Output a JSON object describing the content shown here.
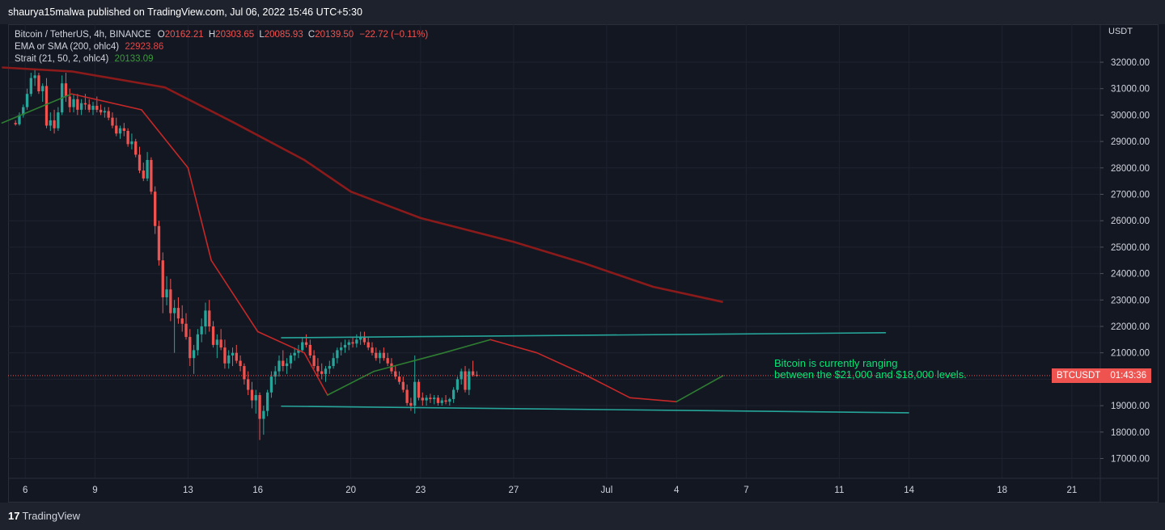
{
  "header": {
    "publisher_line": "shaurya15malwa published on TradingView.com, Jul 06, 2022 15:46 UTC+5:30"
  },
  "legend": {
    "symbol": "Bitcoin / TetherUS, 4h, BINANCE",
    "open_label": "O",
    "open": "20162.21",
    "high_label": "H",
    "high": "20303.65",
    "low_label": "L",
    "low": "20085.93",
    "close_label": "C",
    "close": "20139.50",
    "change": "−22.72 (−0.11%)",
    "ema_label": "EMA or SMA (200, ohlc4)",
    "ema_value": "22923.86",
    "strait_label": "Strait (21, 50, 2, ohlc4)",
    "strait_value": "20133.09"
  },
  "annotation": {
    "line1": "Bitcoin is currently ranging",
    "line2": "between the $21,000 and $18,000 levels."
  },
  "price_flag": {
    "symbol": "BTCUSDT",
    "countdown": "01:43:36"
  },
  "footer": {
    "brand": "TradingView"
  },
  "colors": {
    "up": "#26a69a",
    "down": "#ef5350",
    "ema": "#8b1a1a",
    "strait_up": "#2e7d32",
    "strait_down": "#c62828",
    "trendline": "#26a69a",
    "annotation": "#00e676"
  },
  "chart_data": {
    "type": "candlestick",
    "title": "Bitcoin / TetherUS, 4h, BINANCE",
    "ylabel": "USDT",
    "ylim": [
      16300,
      33000
    ],
    "y_ticks": [
      17000,
      18000,
      19000,
      20000,
      21000,
      22000,
      23000,
      24000,
      25000,
      26000,
      27000,
      28000,
      29000,
      30000,
      31000,
      32000
    ],
    "y_tick_labels": [
      "17000.00",
      "18000.00",
      "19000.00",
      "20000.00",
      "21000.00",
      "22000.00",
      "23000.00",
      "24000.00",
      "25000.00",
      "26000.00",
      "27000.00",
      "28000.00",
      "29000.00",
      "30000.00",
      "31000.00",
      "32000.00"
    ],
    "x_range": [
      "2022-06-05",
      "2022-07-22"
    ],
    "x_ticks": [
      {
        "date": "2022-06-06",
        "label": "6"
      },
      {
        "date": "2022-06-09",
        "label": "9"
      },
      {
        "date": "2022-06-13",
        "label": "13"
      },
      {
        "date": "2022-06-16",
        "label": "16"
      },
      {
        "date": "2022-06-20",
        "label": "20"
      },
      {
        "date": "2022-06-23",
        "label": "23"
      },
      {
        "date": "2022-06-27",
        "label": "27"
      },
      {
        "date": "2022-07-01",
        "label": "Jul"
      },
      {
        "date": "2022-07-04",
        "label": "4"
      },
      {
        "date": "2022-07-07",
        "label": "7"
      },
      {
        "date": "2022-07-11",
        "label": "11"
      },
      {
        "date": "2022-07-14",
        "label": "14"
      },
      {
        "date": "2022-07-18",
        "label": "18"
      },
      {
        "date": "2022-07-21",
        "label": "21"
      }
    ],
    "candle_start": "2022-06-05T14:00",
    "candle_interval_hours": 4,
    "candles": [
      [
        29700,
        29800,
        29600,
        29650
      ],
      [
        29650,
        30100,
        29600,
        30000
      ],
      [
        30000,
        30400,
        29900,
        30300
      ],
      [
        30300,
        31000,
        30200,
        30800
      ],
      [
        30800,
        31600,
        30700,
        31400
      ],
      [
        31400,
        31700,
        31100,
        31500
      ],
      [
        31500,
        31600,
        30800,
        30900
      ],
      [
        30900,
        31200,
        30500,
        31100
      ],
      [
        31100,
        31400,
        29500,
        29600
      ],
      [
        29600,
        30100,
        29400,
        29800
      ],
      [
        29800,
        30200,
        29300,
        29500
      ],
      [
        29500,
        30300,
        29400,
        30100
      ],
      [
        30100,
        31500,
        30000,
        31200
      ],
      [
        31200,
        31600,
        30500,
        30700
      ],
      [
        30700,
        31000,
        30100,
        30300
      ],
      [
        30300,
        30800,
        30100,
        30600
      ],
      [
        30600,
        30800,
        30000,
        30200
      ],
      [
        30200,
        30600,
        30000,
        30450
      ],
      [
        30450,
        30800,
        30200,
        30400
      ],
      [
        30400,
        30600,
        30100,
        30200
      ],
      [
        30200,
        30500,
        30000,
        30350
      ],
      [
        30350,
        30700,
        30100,
        30200
      ],
      [
        30200,
        30400,
        30000,
        30100
      ],
      [
        30100,
        30300,
        29900,
        30150
      ],
      [
        30150,
        30300,
        29800,
        29900
      ],
      [
        29900,
        30100,
        29500,
        29600
      ],
      [
        29600,
        29900,
        29200,
        29300
      ],
      [
        29300,
        29600,
        29100,
        29500
      ],
      [
        29500,
        29700,
        29200,
        29400
      ],
      [
        29400,
        29500,
        28800,
        28900
      ],
      [
        28900,
        29300,
        28700,
        29000
      ],
      [
        29000,
        29100,
        28400,
        28500
      ],
      [
        28500,
        28800,
        27800,
        27900
      ],
      [
        27900,
        28200,
        27500,
        27600
      ],
      [
        27600,
        28600,
        27500,
        28300
      ],
      [
        28300,
        28400,
        27000,
        27100
      ],
      [
        27100,
        27300,
        25500,
        25800
      ],
      [
        25800,
        26000,
        24300,
        24500
      ],
      [
        24500,
        24800,
        22500,
        23100
      ],
      [
        23100,
        23900,
        22800,
        23400
      ],
      [
        23400,
        23800,
        22200,
        22500
      ],
      [
        22500,
        23000,
        21000,
        22700
      ],
      [
        22700,
        23100,
        22100,
        22300
      ],
      [
        22300,
        22800,
        21800,
        22100
      ],
      [
        22100,
        22500,
        21500,
        21600
      ],
      [
        21600,
        21900,
        20500,
        20800
      ],
      [
        20800,
        21300,
        20200,
        21100
      ],
      [
        21100,
        21900,
        20900,
        21700
      ],
      [
        21700,
        22300,
        21400,
        22000
      ],
      [
        22000,
        22900,
        21700,
        22600
      ],
      [
        22600,
        23000,
        21800,
        22000
      ],
      [
        22000,
        22200,
        21200,
        21300
      ],
      [
        21300,
        21700,
        20800,
        21500
      ],
      [
        21500,
        21900,
        21100,
        21200
      ],
      [
        21200,
        21500,
        20400,
        20600
      ],
      [
        20600,
        21100,
        20400,
        20900
      ],
      [
        20900,
        21200,
        20500,
        21000
      ],
      [
        21000,
        21300,
        20600,
        20700
      ],
      [
        20700,
        20900,
        20300,
        20500
      ],
      [
        20500,
        20600,
        19800,
        20000
      ],
      [
        20000,
        20300,
        19400,
        19600
      ],
      [
        19600,
        19900,
        18900,
        19200
      ],
      [
        19200,
        19600,
        18700,
        19400
      ],
      [
        19400,
        19500,
        17700,
        18500
      ],
      [
        18500,
        19000,
        17900,
        18800
      ],
      [
        18800,
        19600,
        18600,
        19500
      ],
      [
        19500,
        20300,
        19300,
        20100
      ],
      [
        20100,
        20500,
        19800,
        20300
      ],
      [
        20300,
        20900,
        20100,
        20700
      ],
      [
        20700,
        21100,
        20300,
        20500
      ],
      [
        20500,
        20800,
        20200,
        20600
      ],
      [
        20600,
        21000,
        20400,
        20900
      ],
      [
        20900,
        21200,
        20700,
        21000
      ],
      [
        21000,
        21300,
        20800,
        21100
      ],
      [
        21100,
        21600,
        21000,
        21400
      ],
      [
        21400,
        21700,
        21200,
        21300
      ],
      [
        21300,
        21500,
        20800,
        20900
      ],
      [
        20900,
        21100,
        20400,
        20500
      ],
      [
        20500,
        20800,
        20100,
        20300
      ],
      [
        20300,
        20600,
        20000,
        20200
      ],
      [
        20200,
        20500,
        19900,
        20400
      ],
      [
        20400,
        20700,
        20200,
        20500
      ],
      [
        20500,
        21000,
        20400,
        20800
      ],
      [
        20800,
        21200,
        20600,
        21100
      ],
      [
        21100,
        21400,
        20900,
        21200
      ],
      [
        21200,
        21500,
        21000,
        21300
      ],
      [
        21300,
        21500,
        21100,
        21400
      ],
      [
        21400,
        21600,
        21200,
        21350
      ],
      [
        21350,
        21700,
        21200,
        21500
      ],
      [
        21500,
        21800,
        21300,
        21600
      ],
      [
        21600,
        21800,
        21300,
        21400
      ],
      [
        21400,
        21600,
        21100,
        21200
      ],
      [
        21200,
        21400,
        20900,
        21000
      ],
      [
        21000,
        21200,
        20700,
        20800
      ],
      [
        20800,
        21100,
        20600,
        21000
      ],
      [
        21000,
        21200,
        20700,
        20800
      ],
      [
        20800,
        21000,
        20500,
        20600
      ],
      [
        20600,
        20800,
        20200,
        20300
      ],
      [
        20300,
        20500,
        20000,
        20100
      ],
      [
        20100,
        20300,
        19800,
        19900
      ],
      [
        19900,
        20100,
        19500,
        19600
      ],
      [
        19600,
        19800,
        19000,
        19100
      ],
      [
        19100,
        19300,
        18800,
        19000
      ],
      [
        19000,
        20900,
        18700,
        19900
      ],
      [
        19900,
        20000,
        19200,
        19300
      ],
      [
        19300,
        19500,
        19000,
        19200
      ],
      [
        19200,
        19400,
        19000,
        19300
      ],
      [
        19300,
        19450,
        19100,
        19250
      ],
      [
        19250,
        19400,
        19050,
        19300
      ],
      [
        19300,
        19400,
        19000,
        19100
      ],
      [
        19100,
        19300,
        19000,
        19200
      ],
      [
        19200,
        19400,
        19050,
        19150
      ],
      [
        19150,
        19300,
        19000,
        19250
      ],
      [
        19250,
        19700,
        19100,
        19600
      ],
      [
        19600,
        20100,
        19500,
        20000
      ],
      [
        20000,
        20400,
        19800,
        20300
      ],
      [
        20300,
        20500,
        19500,
        19600
      ],
      [
        19600,
        20400,
        19400,
        20300
      ],
      [
        20300,
        20700,
        20100,
        20162
      ],
      [
        20162,
        20304,
        20086,
        20140
      ]
    ],
    "series": [
      {
        "name": "EMA or SMA (200, ohlc4)",
        "x": [
          "2022-06-05",
          "2022-06-08",
          "2022-06-12",
          "2022-06-15",
          "2022-06-18",
          "2022-06-20",
          "2022-06-23",
          "2022-06-27",
          "2022-06-30",
          "2022-07-03",
          "2022-07-06"
        ],
        "values": [
          31800,
          31650,
          31050,
          29700,
          28300,
          27100,
          26100,
          25200,
          24400,
          23500,
          22924
        ]
      },
      {
        "name": "Strait (21, 50, 2, ohlc4)",
        "x": [
          "2022-06-05",
          "2022-06-08",
          "2022-06-11",
          "2022-06-13",
          "2022-06-14",
          "2022-06-16",
          "2022-06-18",
          "2022-06-19",
          "2022-06-21",
          "2022-06-24",
          "2022-06-26",
          "2022-06-28",
          "2022-06-30",
          "2022-07-02",
          "2022-07-04",
          "2022-07-06"
        ],
        "values": [
          29700,
          30800,
          30200,
          28000,
          24500,
          21800,
          21000,
          19400,
          20300,
          21000,
          21500,
          21000,
          20200,
          19300,
          19150,
          20133
        ]
      }
    ],
    "trendlines": [
      {
        "name": "resistance",
        "x": [
          "2022-06-17",
          "2022-07-13"
        ],
        "values": [
          21570,
          21760
        ]
      },
      {
        "name": "support",
        "x": [
          "2022-06-17",
          "2022-07-14"
        ],
        "values": [
          18980,
          18730
        ]
      }
    ],
    "current_price": 20139.5
  }
}
